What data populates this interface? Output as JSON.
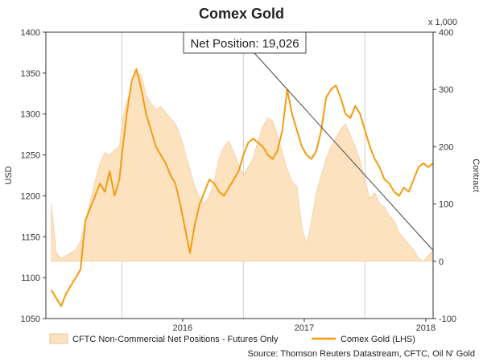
{
  "chart_data": {
    "type": "line",
    "title": "Comex Gold",
    "left_axis": {
      "label": "USD",
      "range": [
        1050,
        1400
      ],
      "ticks": [
        1050,
        1100,
        1150,
        1200,
        1250,
        1300,
        1350,
        1400
      ]
    },
    "right_axis": {
      "label": "Contract",
      "unit_note": "x 1,000",
      "range": [
        -100,
        400
      ],
      "ticks": [
        -100,
        0,
        100,
        200,
        300,
        400
      ]
    },
    "x_axis": {
      "range": [
        "2015-05",
        "2018-07"
      ],
      "tick_labels": [
        "2016",
        "2017",
        "2018"
      ]
    },
    "grid": "vertical",
    "legend_position": "bottom",
    "annotation": {
      "text": "Net Position: 19,026"
    },
    "source": "Source: Thomson Reuters Datastream, CFTC, Oil N' Gold",
    "series": [
      {
        "name": "CFTC Non-Commercial Net Positions - Futures Only",
        "type": "area",
        "axis": "right",
        "color": "#fde2c0",
        "x": [
          2015.42,
          2015.46,
          2015.5,
          2015.54,
          2015.58,
          2015.62,
          2015.66,
          2015.7,
          2015.74,
          2015.78,
          2015.82,
          2015.86,
          2015.9,
          2015.94,
          2015.98,
          2016.0,
          2016.04,
          2016.08,
          2016.12,
          2016.16,
          2016.2,
          2016.24,
          2016.28,
          2016.32,
          2016.36,
          2016.4,
          2016.44,
          2016.48,
          2016.52,
          2016.56,
          2016.6,
          2016.64,
          2016.68,
          2016.72,
          2016.76,
          2016.8,
          2016.84,
          2016.88,
          2016.92,
          2016.96,
          2017.0,
          2017.04,
          2017.08,
          2017.12,
          2017.16,
          2017.2,
          2017.24,
          2017.28,
          2017.32,
          2017.36,
          2017.4,
          2017.44,
          2017.48,
          2017.52,
          2017.56,
          2017.6,
          2017.64,
          2017.68,
          2017.72,
          2017.76,
          2017.8,
          2017.84,
          2017.88,
          2017.92,
          2017.96,
          2018.0,
          2018.04,
          2018.08,
          2018.12,
          2018.16,
          2018.2,
          2018.24,
          2018.28,
          2018.32,
          2018.36,
          2018.4,
          2018.44,
          2018.48,
          2018.52,
          2018.56
        ],
        "values": [
          100,
          15,
          5,
          10,
          15,
          20,
          35,
          70,
          105,
          140,
          170,
          190,
          185,
          195,
          200,
          240,
          280,
          300,
          330,
          325,
          290,
          275,
          265,
          270,
          260,
          250,
          240,
          220,
          190,
          160,
          130,
          110,
          100,
          115,
          140,
          180,
          200,
          210,
          190,
          170,
          150,
          165,
          180,
          210,
          235,
          250,
          245,
          220,
          190,
          160,
          140,
          130,
          60,
          30,
          70,
          120,
          150,
          180,
          200,
          215,
          230,
          240,
          220,
          200,
          175,
          140,
          110,
          120,
          100,
          95,
          80,
          70,
          50,
          40,
          30,
          20,
          5,
          0,
          10,
          19
        ]
      },
      {
        "name": "Comex Gold (LHS)",
        "type": "line",
        "axis": "left",
        "color": "#f39c12",
        "x": [
          2015.42,
          2015.46,
          2015.5,
          2015.54,
          2015.58,
          2015.62,
          2015.66,
          2015.7,
          2015.74,
          2015.78,
          2015.82,
          2015.86,
          2015.9,
          2015.94,
          2015.98,
          2016.0,
          2016.04,
          2016.08,
          2016.12,
          2016.16,
          2016.2,
          2016.24,
          2016.28,
          2016.32,
          2016.36,
          2016.4,
          2016.44,
          2016.48,
          2016.52,
          2016.56,
          2016.6,
          2016.64,
          2016.68,
          2016.72,
          2016.76,
          2016.8,
          2016.84,
          2016.88,
          2016.92,
          2016.96,
          2017.0,
          2017.04,
          2017.08,
          2017.12,
          2017.16,
          2017.2,
          2017.24,
          2017.28,
          2017.32,
          2017.36,
          2017.4,
          2017.44,
          2017.48,
          2017.52,
          2017.56,
          2017.6,
          2017.64,
          2017.68,
          2017.72,
          2017.76,
          2017.8,
          2017.84,
          2017.88,
          2017.92,
          2017.96,
          2018.0,
          2018.04,
          2018.08,
          2018.12,
          2018.16,
          2018.2,
          2018.24,
          2018.28,
          2018.32,
          2018.36,
          2018.4,
          2018.44,
          2018.48,
          2018.52,
          2018.56
        ],
        "values": [
          1085,
          1075,
          1065,
          1080,
          1090,
          1100,
          1110,
          1170,
          1185,
          1200,
          1215,
          1205,
          1230,
          1200,
          1220,
          1250,
          1300,
          1340,
          1355,
          1330,
          1300,
          1280,
          1260,
          1250,
          1240,
          1225,
          1215,
          1190,
          1160,
          1130,
          1165,
          1190,
          1205,
          1220,
          1215,
          1205,
          1200,
          1210,
          1220,
          1230,
          1250,
          1265,
          1270,
          1265,
          1260,
          1250,
          1245,
          1255,
          1280,
          1330,
          1300,
          1280,
          1260,
          1250,
          1245,
          1255,
          1280,
          1320,
          1330,
          1335,
          1320,
          1300,
          1295,
          1310,
          1300,
          1280,
          1260,
          1245,
          1235,
          1220,
          1215,
          1205,
          1200,
          1210,
          1205,
          1220,
          1235,
          1240,
          1235,
          1240
        ]
      }
    ]
  }
}
